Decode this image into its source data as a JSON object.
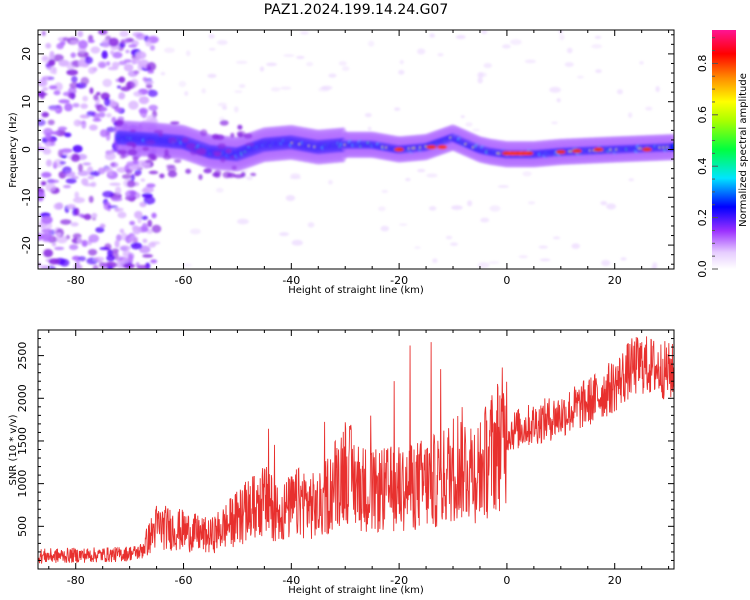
{
  "chart_data": [
    {
      "type": "heatmap",
      "title": "PAZ1.2024.199.14.24.G07",
      "xlabel": "Height of straight line (km)",
      "ylabel": "Frequency (Hz)",
      "xlim": [
        -87,
        31
      ],
      "ylim": [
        -25,
        25
      ],
      "xticks": [
        "-80",
        "-60",
        "-40",
        "-20",
        "0",
        "20"
      ],
      "yticks": [
        "-20",
        "-10",
        "0",
        "10",
        "20"
      ],
      "colorbar": {
        "label": "Normalized spectral amplitude",
        "range": [
          0,
          0.93
        ],
        "ticks": [
          "0.0",
          "0.2",
          "0.4",
          "0.6",
          "0.8"
        ]
      },
      "ridge": {
        "description_points_x_km": [
          -72,
          -65,
          -60,
          -55,
          -50,
          -45,
          -40,
          -35,
          -30,
          -25,
          -20,
          -15,
          -10,
          -8,
          -5,
          -3,
          0,
          5,
          10,
          20,
          31
        ],
        "frequency_hz": [
          2.5,
          2.0,
          1.5,
          -0.5,
          -1.0,
          1.0,
          1.5,
          0.5,
          1.0,
          1.0,
          0.0,
          0.5,
          2.5,
          1.5,
          0.0,
          -0.5,
          -1.0,
          -1.0,
          -0.5,
          0.0,
          0.5
        ]
      }
    },
    {
      "type": "line",
      "title": "",
      "xlabel": "Height of straight line (km)",
      "ylabel": "SNR (10 * v/v)",
      "xlim": [
        -87,
        31
      ],
      "ylim": [
        0,
        2800
      ],
      "xticks": [
        "-80",
        "-60",
        "-40",
        "-20",
        "0",
        "20"
      ],
      "yticks": [
        "500",
        "1000",
        "1500",
        "2000",
        "2500"
      ],
      "color": "#e8302e",
      "series": [
        {
          "name": "",
          "x": [
            -87,
            -80,
            -72,
            -68,
            -65,
            -60,
            -55,
            -50,
            -45,
            -42,
            -38,
            -35,
            -30,
            -28,
            -25,
            -20,
            -15,
            -12,
            -9,
            -5,
            -2,
            0,
            5,
            10,
            15,
            20,
            23,
            25,
            28,
            31
          ],
          "y": [
            150,
            160,
            170,
            200,
            500,
            450,
            380,
            600,
            800,
            650,
            800,
            700,
            1200,
            1000,
            900,
            950,
            1000,
            1050,
            1250,
            1150,
            1450,
            1600,
            1700,
            1800,
            1950,
            2150,
            2350,
            2400,
            2350,
            2300
          ]
        }
      ]
    }
  ]
}
